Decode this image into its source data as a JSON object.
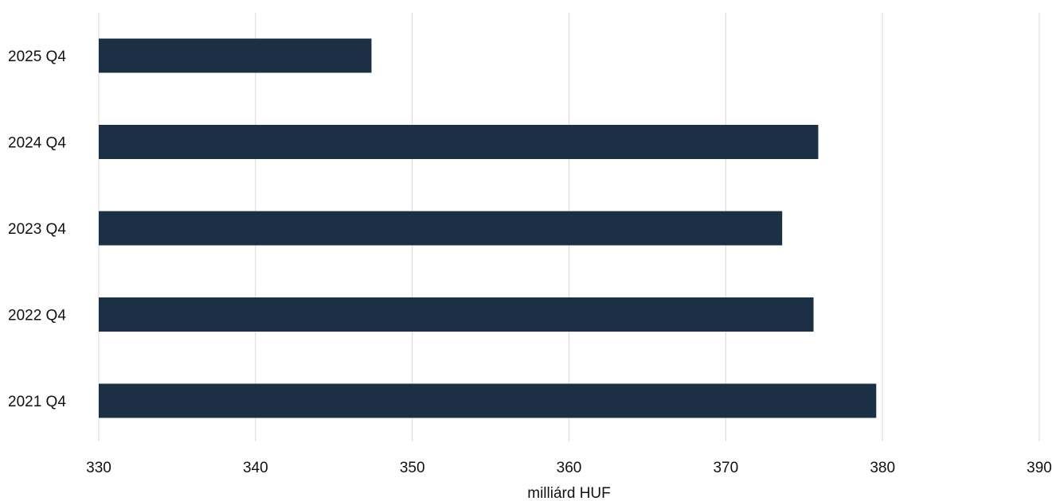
{
  "chart_data": {
    "type": "bar",
    "orientation": "horizontal",
    "categories": [
      "2025 Q4",
      "2024 Q4",
      "2023 Q4",
      "2022 Q4",
      "2021 Q4"
    ],
    "values": [
      347.4,
      375.9,
      373.6,
      375.6,
      379.6
    ],
    "xlabel": "milliárd HUF",
    "ylabel": "",
    "xlim": [
      330,
      390
    ],
    "x_ticks": [
      "330",
      "340",
      "350",
      "360",
      "370",
      "380",
      "390"
    ],
    "grid": "vertical",
    "bar_color": "#1b3045"
  }
}
